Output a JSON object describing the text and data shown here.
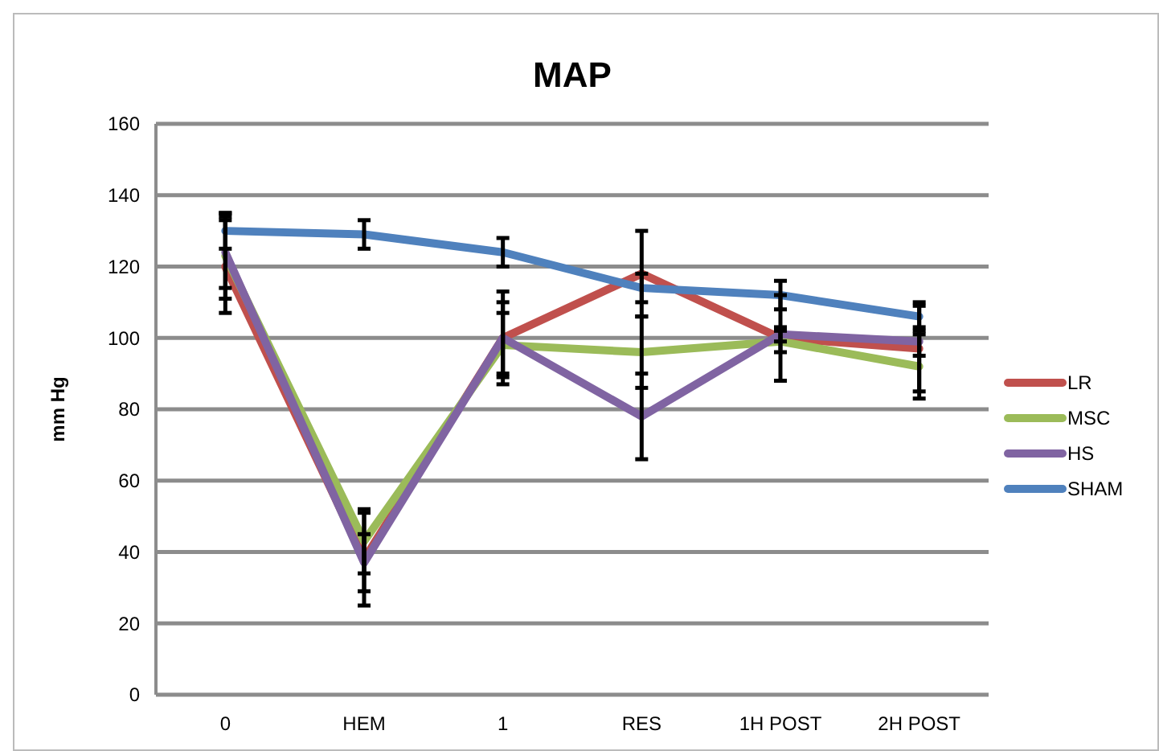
{
  "chart_data": {
    "type": "line",
    "title": "MAP",
    "ylabel": "mm Hg",
    "categories": [
      "0",
      "HEM",
      "1",
      "RES",
      "1H POST",
      "2H POST"
    ],
    "ylim": [
      0,
      160
    ],
    "yticks": [
      0,
      20,
      40,
      60,
      80,
      100,
      120,
      140,
      160
    ],
    "grid": "y",
    "legend": "right",
    "marker": "none",
    "line_style": "solid",
    "series": [
      {
        "name": "LR",
        "color": "#c0504d",
        "values": [
          120,
          38,
          100,
          118,
          100,
          97
        ],
        "errors": [
          13,
          13,
          13,
          12,
          12,
          12
        ]
      },
      {
        "name": "MSC",
        "color": "#9bbb59",
        "values": [
          123,
          43,
          98,
          96,
          99,
          92
        ],
        "errors": [
          12,
          9,
          9,
          10,
          3,
          9
        ]
      },
      {
        "name": "HS",
        "color": "#8064a2",
        "values": [
          124,
          37,
          100,
          78,
          101,
          99
        ],
        "errors": [
          10,
          8,
          10,
          12,
          2,
          4
        ]
      },
      {
        "name": "SHAM",
        "color": "#4f81bd",
        "values": [
          130,
          129,
          124,
          114,
          112,
          106
        ],
        "errors": [
          5,
          4,
          4,
          4,
          4,
          4
        ]
      }
    ]
  }
}
